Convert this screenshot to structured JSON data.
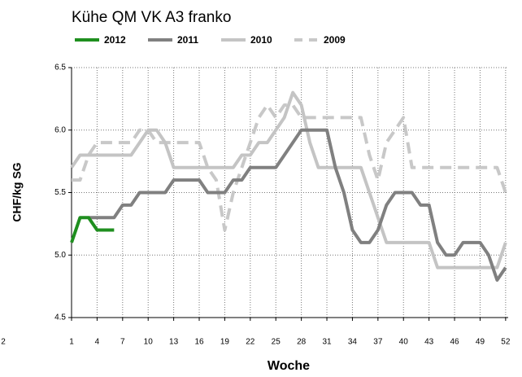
{
  "chart_data": {
    "type": "line",
    "title": "Kühe QM VK A3 franko",
    "x_label": "Woche",
    "y_label": "CHF/kg SG",
    "annotations": [
      "2"
    ],
    "x": [
      1,
      2,
      3,
      4,
      5,
      6,
      7,
      8,
      9,
      10,
      11,
      12,
      13,
      14,
      15,
      16,
      17,
      18,
      19,
      20,
      21,
      22,
      23,
      24,
      25,
      26,
      27,
      28,
      29,
      30,
      31,
      32,
      33,
      34,
      35,
      36,
      37,
      38,
      39,
      40,
      41,
      42,
      43,
      44,
      45,
      46,
      47,
      48,
      49,
      50,
      51,
      52
    ],
    "xlim": [
      1,
      52.3
    ],
    "xticks": [
      1,
      4,
      7,
      10,
      13,
      16,
      19,
      22,
      25,
      28,
      31,
      34,
      37,
      40,
      43,
      46,
      49,
      52
    ],
    "ylim": [
      4.5,
      6.5
    ],
    "yticks": [
      4.5,
      5.0,
      5.5,
      6.0,
      6.5
    ],
    "ytick_labels": [
      "4.5",
      "5.0",
      "5.5",
      "6.0",
      "6.5"
    ],
    "grid": true,
    "series": [
      {
        "name": "2012",
        "color": "#1f8f1f",
        "dashed": false,
        "values": [
          5.1,
          5.3,
          5.3,
          5.2,
          5.2,
          5.2,
          null,
          null,
          null,
          null,
          null,
          null,
          null,
          null,
          null,
          null,
          null,
          null,
          null,
          null,
          null,
          null,
          null,
          null,
          null,
          null,
          null,
          null,
          null,
          null,
          null,
          null,
          null,
          null,
          null,
          null,
          null,
          null,
          null,
          null,
          null,
          null,
          null,
          null,
          null,
          null,
          null,
          null,
          null,
          null,
          null,
          null
        ]
      },
      {
        "name": "2011",
        "color": "#808080",
        "dashed": false,
        "values": [
          null,
          null,
          5.3,
          5.3,
          5.3,
          5.3,
          5.4,
          5.4,
          5.5,
          5.5,
          5.5,
          5.5,
          5.6,
          5.6,
          5.6,
          5.6,
          5.5,
          5.5,
          5.5,
          5.6,
          5.6,
          5.7,
          5.7,
          5.7,
          5.7,
          5.8,
          5.9,
          6.0,
          6.0,
          6.0,
          6.0,
          5.7,
          5.5,
          5.2,
          5.1,
          5.1,
          5.2,
          5.4,
          5.5,
          5.5,
          5.5,
          5.4,
          5.4,
          5.1,
          5.0,
          5.0,
          5.1,
          5.1,
          5.1,
          5.0,
          4.8,
          4.9
        ]
      },
      {
        "name": "2010",
        "color": "#c4c4c4",
        "dashed": false,
        "values": [
          5.7,
          5.8,
          5.8,
          5.8,
          5.8,
          5.8,
          5.8,
          5.8,
          5.9,
          6.0,
          6.0,
          5.9,
          5.7,
          5.7,
          5.7,
          5.7,
          5.7,
          5.7,
          5.7,
          5.7,
          5.8,
          5.8,
          5.9,
          5.9,
          6.0,
          6.1,
          6.3,
          6.2,
          5.9,
          5.7,
          5.7,
          5.7,
          5.7,
          5.7,
          5.7,
          5.5,
          5.3,
          5.1,
          5.1,
          5.1,
          5.1,
          5.1,
          5.1,
          4.9,
          4.9,
          4.9,
          4.9,
          4.9,
          4.9,
          4.9,
          4.9,
          5.1
        ]
      },
      {
        "name": "2009",
        "color": "#c8c8c8",
        "dashed": true,
        "values": [
          5.6,
          5.6,
          5.8,
          5.9,
          5.9,
          5.9,
          5.9,
          5.9,
          6.0,
          6.0,
          5.9,
          5.9,
          5.9,
          5.9,
          5.9,
          5.9,
          5.7,
          5.6,
          5.2,
          5.5,
          5.7,
          5.9,
          6.1,
          6.2,
          6.1,
          6.2,
          6.2,
          6.1,
          6.1,
          6.1,
          6.1,
          6.1,
          6.1,
          6.1,
          6.1,
          5.8,
          5.6,
          5.9,
          6.0,
          6.1,
          5.7,
          5.7,
          5.7,
          5.7,
          5.7,
          5.7,
          5.7,
          5.7,
          5.7,
          5.7,
          5.7,
          5.5
        ]
      }
    ]
  }
}
